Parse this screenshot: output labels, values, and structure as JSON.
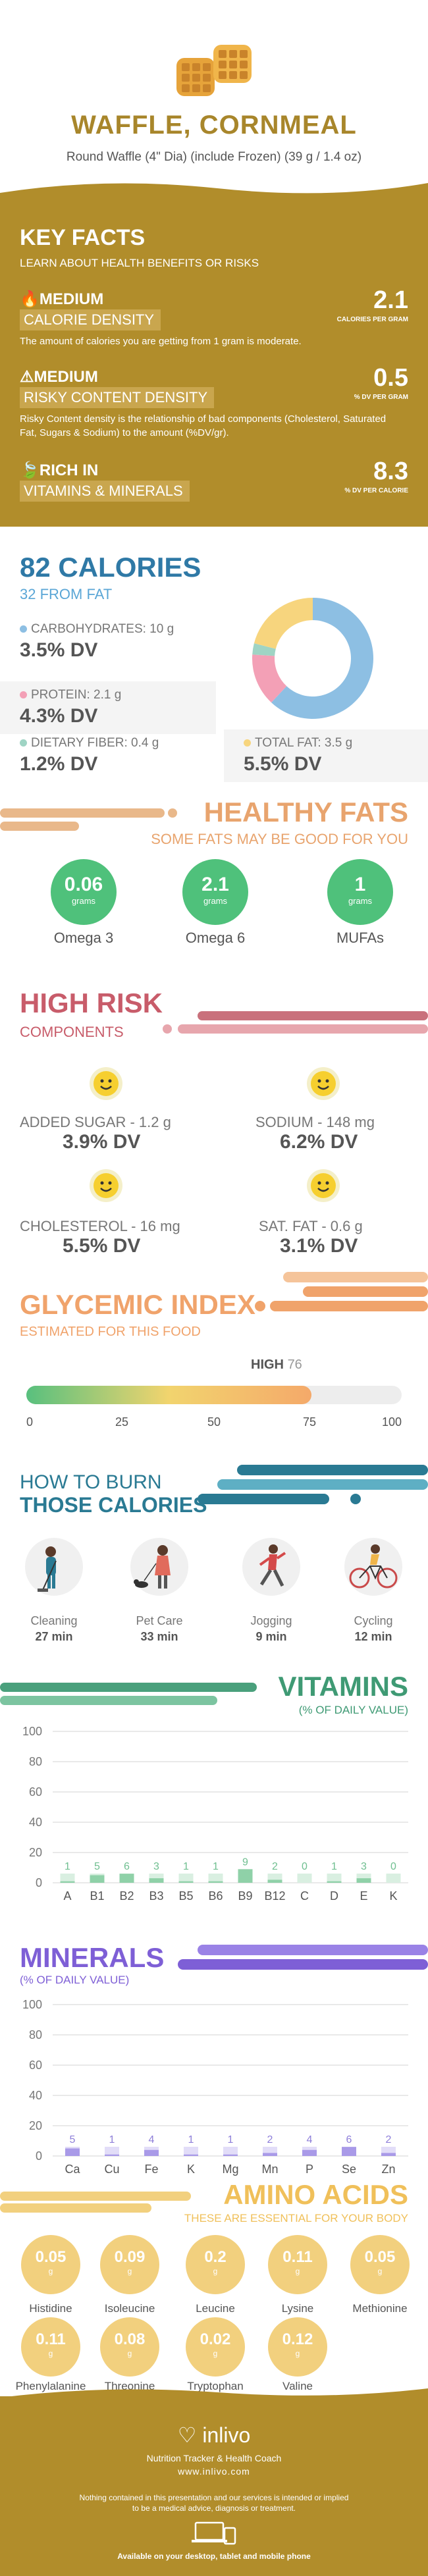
{
  "header": {
    "title": "WAFFLE, CORNMEAL",
    "subtitle": "Round Waffle (4\" Dia) (include Frozen) (39 g / 1.4 oz)"
  },
  "key_facts": {
    "title": "KEY FACTS",
    "subtitle": "LEARN ABOUT HEALTH BENEFITS OR RISKS",
    "rows": [
      {
        "level": "MEDIUM",
        "label": "CALORIE DENSITY",
        "value": "2.1",
        "unit": "CALORIES PER GRAM",
        "desc": "The amount of calories you are getting from 1 gram is moderate."
      },
      {
        "level": "MEDIUM",
        "label": "RISKY CONTENT DENSITY",
        "value": "0.5",
        "unit": "% DV PER GRAM",
        "desc": "Risky Content density is the relationship of bad components (Cholesterol, Saturated Fat, Sugars & Sodium) to the amount (%DV/gr)."
      },
      {
        "level": "RICH IN",
        "label": "VITAMINS & MINERALS",
        "value": "8.3",
        "unit": "% DV PER CALORIE",
        "desc": ""
      }
    ]
  },
  "calories": {
    "title": "82 CALORIES",
    "subtitle": "32 FROM FAT",
    "nutrients": [
      {
        "label": "CARBOHYDRATES: 10 g",
        "dv": "3.5% DV",
        "color": "#8dbfe3"
      },
      {
        "label": "PROTEIN: 2.1 g",
        "dv": "4.3% DV",
        "color": "#f3a0b6"
      },
      {
        "label": "DIETARY FIBER: 0.4 g",
        "dv": "1.2% DV",
        "color": "#9fd4c4"
      },
      {
        "label": "TOTAL FAT: 3.5 g",
        "dv": "5.5% DV",
        "color": "#f7d57e"
      }
    ],
    "donut": [
      {
        "name": "carbs",
        "value": 62,
        "color": "#8dbfe3"
      },
      {
        "name": "protein",
        "value": 14,
        "color": "#f3a0b6"
      },
      {
        "name": "fiber",
        "value": 3,
        "color": "#9fd4c4"
      },
      {
        "name": "fat",
        "value": 21,
        "color": "#f7d57e"
      }
    ]
  },
  "healthy_fats": {
    "title": "HEALTHY FATS",
    "subtitle": "SOME FATS MAY BE GOOD FOR YOU",
    "items": [
      {
        "value": "0.06",
        "unit": "grams",
        "label": "Omega 3"
      },
      {
        "value": "2.1",
        "unit": "grams",
        "label": "Omega 6"
      },
      {
        "value": "1",
        "unit": "grams",
        "label": "MUFAs"
      }
    ]
  },
  "high_risk": {
    "title": "HIGH RISK",
    "subtitle": "COMPONENTS",
    "items": [
      {
        "label": "ADDED SUGAR - 1.2 g",
        "dv": "3.9% DV"
      },
      {
        "label": "SODIUM - 148 mg",
        "dv": "6.2% DV"
      },
      {
        "label": "CHOLESTEROL - 16 mg",
        "dv": "5.5% DV"
      },
      {
        "label": "SAT. FAT - 0.6 g",
        "dv": "3.1% DV"
      }
    ]
  },
  "glycemic": {
    "title": "GLYCEMIC INDEX",
    "subtitle": "ESTIMATED FOR THIS FOOD",
    "level": "HIGH",
    "value": "76",
    "value_num": 76,
    "ticks": [
      "0",
      "25",
      "50",
      "75",
      "100"
    ]
  },
  "burn": {
    "title1": "HOW TO BURN",
    "title2": "THOSE CALORIES",
    "activities": [
      {
        "label": "Cleaning",
        "time": "27 min",
        "icon": "cleaning-icon"
      },
      {
        "label": "Pet Care",
        "time": "33 min",
        "icon": "pet-care-icon"
      },
      {
        "label": "Jogging",
        "time": "9 min",
        "icon": "jogging-icon"
      },
      {
        "label": "Cycling",
        "time": "12 min",
        "icon": "cycling-icon"
      }
    ]
  },
  "vitamins": {
    "title": "VITAMINS",
    "subtitle": "(% OF DAILY VALUE)",
    "chart_data": {
      "type": "bar",
      "categories": [
        "A",
        "B1",
        "B2",
        "B3",
        "B5",
        "B6",
        "B9",
        "B12",
        "C",
        "D",
        "E",
        "K"
      ],
      "values": [
        1,
        5,
        6,
        3,
        1,
        1,
        9,
        2,
        0,
        1,
        3,
        0
      ],
      "ylim": [
        0,
        100
      ],
      "yticks": [
        "100",
        "80",
        "60",
        "40",
        "20",
        "0"
      ]
    }
  },
  "minerals": {
    "title": "MINERALS",
    "subtitle": "(% OF DAILY VALUE)",
    "chart_data": {
      "type": "bar",
      "categories": [
        "Ca",
        "Cu",
        "Fe",
        "K",
        "Mg",
        "Mn",
        "P",
        "Se",
        "Zn"
      ],
      "values": [
        5,
        1,
        4,
        1,
        1,
        2,
        4,
        6,
        2
      ],
      "ylim": [
        0,
        100
      ],
      "yticks": [
        "100",
        "80",
        "60",
        "40",
        "20",
        "0"
      ]
    }
  },
  "amino": {
    "title": "AMINO ACIDS",
    "subtitle": "THESE ARE ESSENTIAL FOR YOUR BODY",
    "items": [
      {
        "value": "0.05",
        "unit": "g",
        "label": "Histidine"
      },
      {
        "value": "0.09",
        "unit": "g",
        "label": "Isoleucine"
      },
      {
        "value": "0.2",
        "unit": "g",
        "label": "Leucine"
      },
      {
        "value": "0.11",
        "unit": "g",
        "label": "Lysine"
      },
      {
        "value": "0.05",
        "unit": "g",
        "label": "Methionine"
      },
      {
        "value": "0.11",
        "unit": "g",
        "label": "Phenylalanine"
      },
      {
        "value": "0.08",
        "unit": "g",
        "label": "Threonine"
      },
      {
        "value": "0.02",
        "unit": "g",
        "label": "Tryptophan"
      },
      {
        "value": "0.12",
        "unit": "g",
        "label": "Valine"
      }
    ]
  },
  "footer": {
    "brand": "inlivo",
    "tagline": "Nutrition Tracker & Health Coach",
    "url": "www.inlivo.com",
    "disclaimer1": "Nothing contained in this presentation and our services is intended or implied",
    "disclaimer2": "to be a medical advice, diagnosis or treatment.",
    "available": "Available on your desktop, tablet and mobile phone"
  }
}
